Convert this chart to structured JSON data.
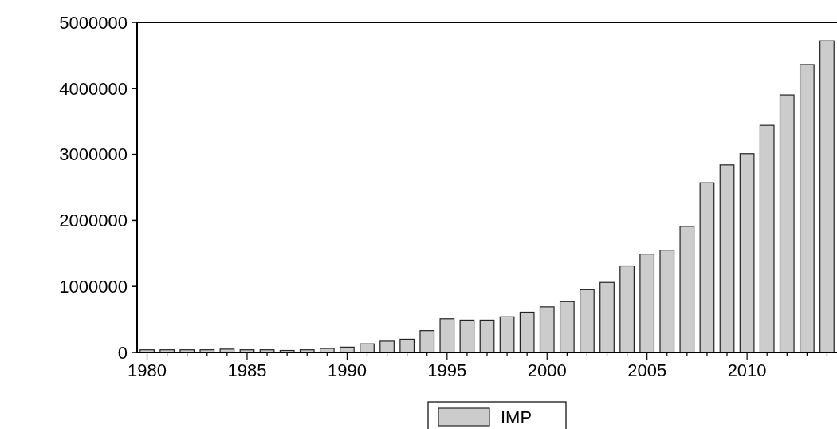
{
  "chart_data": {
    "type": "bar",
    "categories": [
      "1980",
      null,
      null,
      null,
      null,
      "1985",
      null,
      null,
      null,
      null,
      "1990",
      null,
      null,
      null,
      null,
      "1995",
      null,
      null,
      null,
      null,
      "2000",
      null,
      null,
      null,
      null,
      "2005",
      null,
      null,
      null,
      null,
      "2010",
      null,
      null,
      null,
      null
    ],
    "series": [
      {
        "name": "IMP",
        "color": "#cccccc",
        "values": [
          40000,
          40000,
          40000,
          40000,
          50000,
          40000,
          40000,
          30000,
          40000,
          60000,
          80000,
          130000,
          170000,
          200000,
          330000,
          510000,
          490000,
          490000,
          540000,
          610000,
          690000,
          770000,
          950000,
          1060000,
          1310000,
          1490000,
          1550000,
          1910000,
          2570000,
          2840000,
          3010000,
          3440000,
          3900000,
          4360000,
          4720000
        ]
      }
    ],
    "ylim": [
      0,
      5000000
    ],
    "yticks": [
      0,
      1000000,
      2000000,
      3000000,
      4000000,
      5000000
    ],
    "grid": false,
    "legend": "bottom"
  }
}
